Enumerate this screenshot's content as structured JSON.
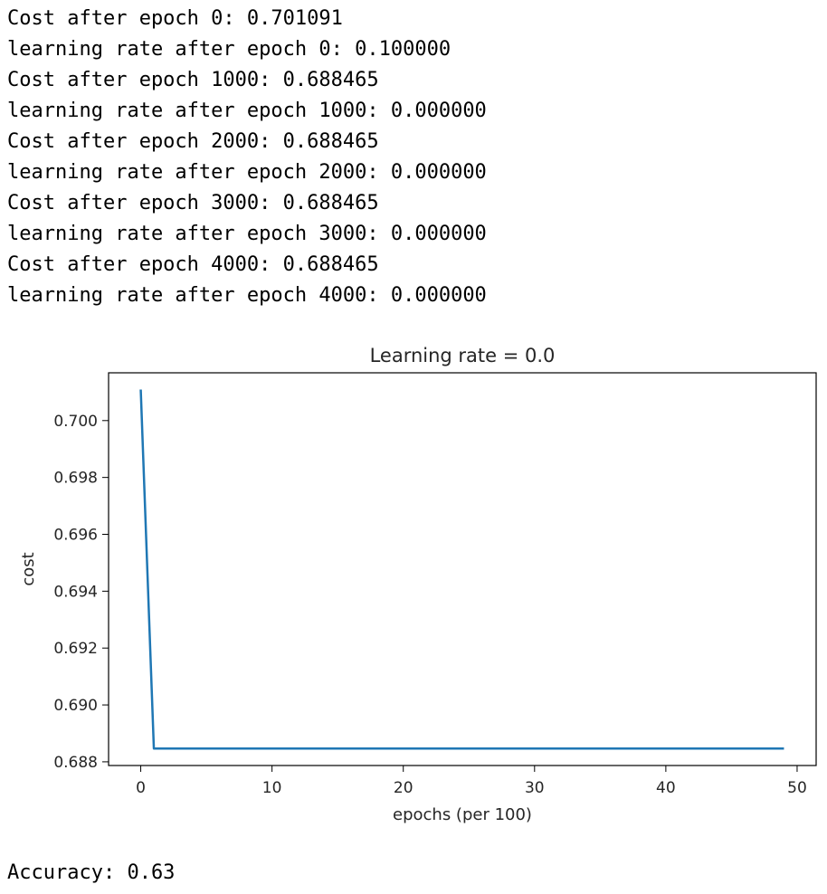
{
  "output": {
    "log_lines": [
      "Cost after epoch 0: 0.701091",
      "learning rate after epoch 0: 0.100000",
      "Cost after epoch 1000: 0.688465",
      "learning rate after epoch 1000: 0.000000",
      "Cost after epoch 2000: 0.688465",
      "learning rate after epoch 2000: 0.000000",
      "Cost after epoch 3000: 0.688465",
      "learning rate after epoch 3000: 0.000000",
      "Cost after epoch 4000: 0.688465",
      "learning rate after epoch 4000: 0.000000"
    ],
    "accuracy_line": "Accuracy: 0.63"
  },
  "chart_data": {
    "type": "line",
    "title": "Learning rate = 0.0",
    "xlabel": "epochs (per 100)",
    "ylabel": "cost",
    "xlim": [
      -2.45,
      51.45
    ],
    "ylim": [
      0.68787,
      0.70168
    ],
    "xticks": [
      0,
      10,
      20,
      30,
      40,
      50
    ],
    "yticks": [
      0.688,
      0.69,
      0.692,
      0.694,
      0.696,
      0.698,
      0.7
    ],
    "xtick_labels": [
      "0",
      "10",
      "20",
      "30",
      "40",
      "50"
    ],
    "ytick_labels": [
      "0.688",
      "0.690",
      "0.692",
      "0.694",
      "0.696",
      "0.698",
      "0.700"
    ],
    "grid": false,
    "line_color": "#1f77b4",
    "series": [
      {
        "x": [
          0,
          1,
          2,
          3,
          4,
          5,
          6,
          7,
          8,
          9,
          10,
          11,
          12,
          13,
          14,
          15,
          16,
          17,
          18,
          19,
          20,
          21,
          22,
          23,
          24,
          25,
          26,
          27,
          28,
          29,
          30,
          31,
          32,
          33,
          34,
          35,
          36,
          37,
          38,
          39,
          40,
          41,
          42,
          43,
          44,
          45,
          46,
          47,
          48,
          49
        ],
        "y": [
          0.701091,
          0.688465,
          0.688465,
          0.688465,
          0.688465,
          0.688465,
          0.688465,
          0.688465,
          0.688465,
          0.688465,
          0.688465,
          0.688465,
          0.688465,
          0.688465,
          0.688465,
          0.688465,
          0.688465,
          0.688465,
          0.688465,
          0.688465,
          0.688465,
          0.688465,
          0.688465,
          0.688465,
          0.688465,
          0.688465,
          0.688465,
          0.688465,
          0.688465,
          0.688465,
          0.688465,
          0.688465,
          0.688465,
          0.688465,
          0.688465,
          0.688465,
          0.688465,
          0.688465,
          0.688465,
          0.688465,
          0.688465,
          0.688465,
          0.688465,
          0.688465,
          0.688465,
          0.688465,
          0.688465,
          0.688465,
          0.688465,
          0.688465
        ]
      }
    ]
  }
}
